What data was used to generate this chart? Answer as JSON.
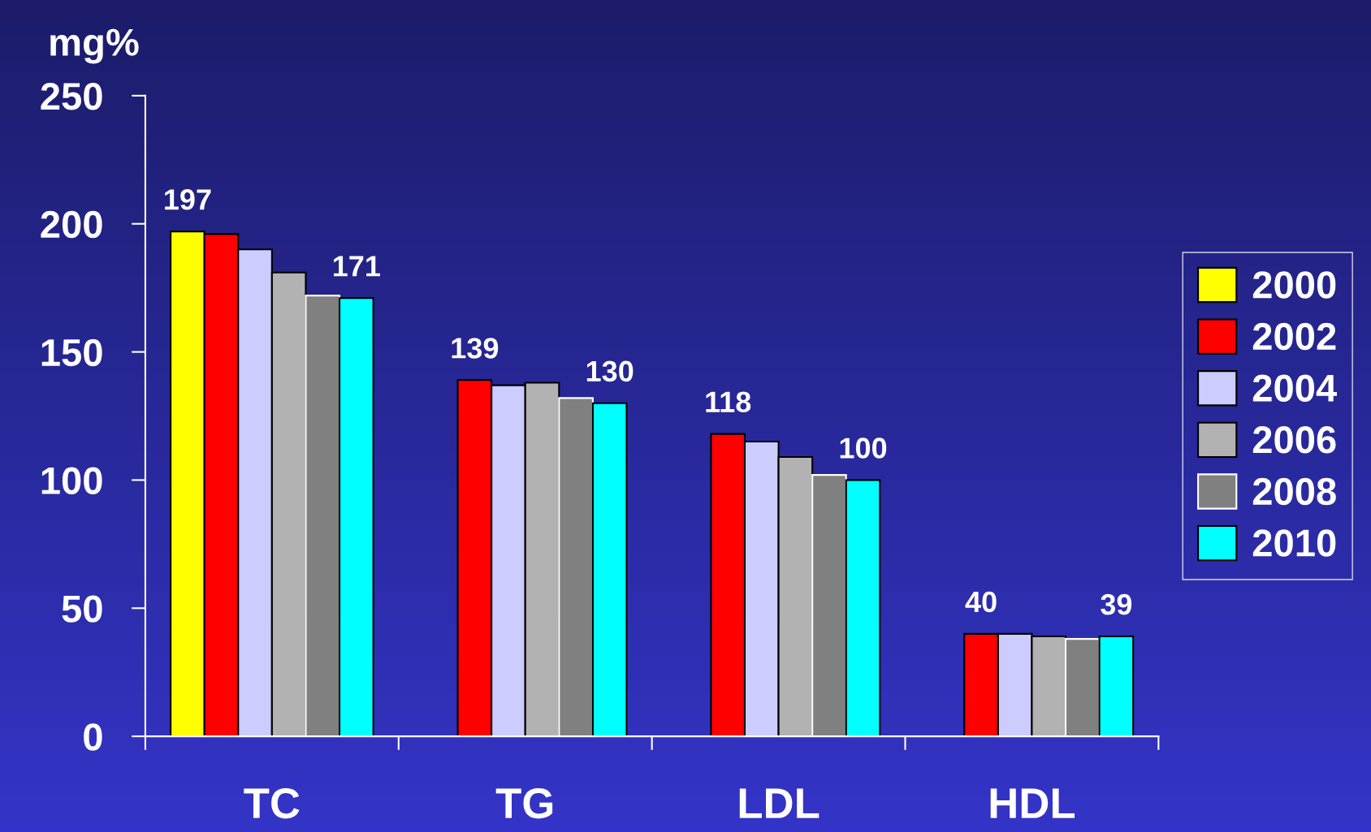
{
  "chart_data": {
    "type": "bar",
    "ylabel": "mg%",
    "categories": [
      "TC",
      "TG",
      "LDL",
      "HDL"
    ],
    "series": [
      {
        "name": "2000",
        "color": "#ffff00",
        "values": [
          197,
          null,
          null,
          null
        ],
        "value_labels": [
          "197",
          null,
          null,
          null
        ]
      },
      {
        "name": "2002",
        "color": "#ff0000",
        "values": [
          196,
          139,
          118,
          40
        ],
        "value_labels": [
          null,
          "139",
          "118",
          "40"
        ]
      },
      {
        "name": "2004",
        "color": "#ccccff",
        "values": [
          190,
          137,
          115,
          40
        ]
      },
      {
        "name": "2006",
        "color": "#b2b2b2",
        "values": [
          181,
          138,
          109,
          39
        ]
      },
      {
        "name": "2008",
        "color": "#808080",
        "values": [
          172,
          132,
          102,
          38
        ]
      },
      {
        "name": "2010",
        "color": "#00ffff",
        "values": [
          171,
          130,
          100,
          39
        ],
        "value_labels": [
          "171",
          "130",
          "100",
          "39"
        ]
      }
    ],
    "ylim": [
      0,
      250
    ],
    "yticks": [
      0,
      50,
      100,
      150,
      200,
      250
    ],
    "grid": false,
    "legend": "right"
  }
}
